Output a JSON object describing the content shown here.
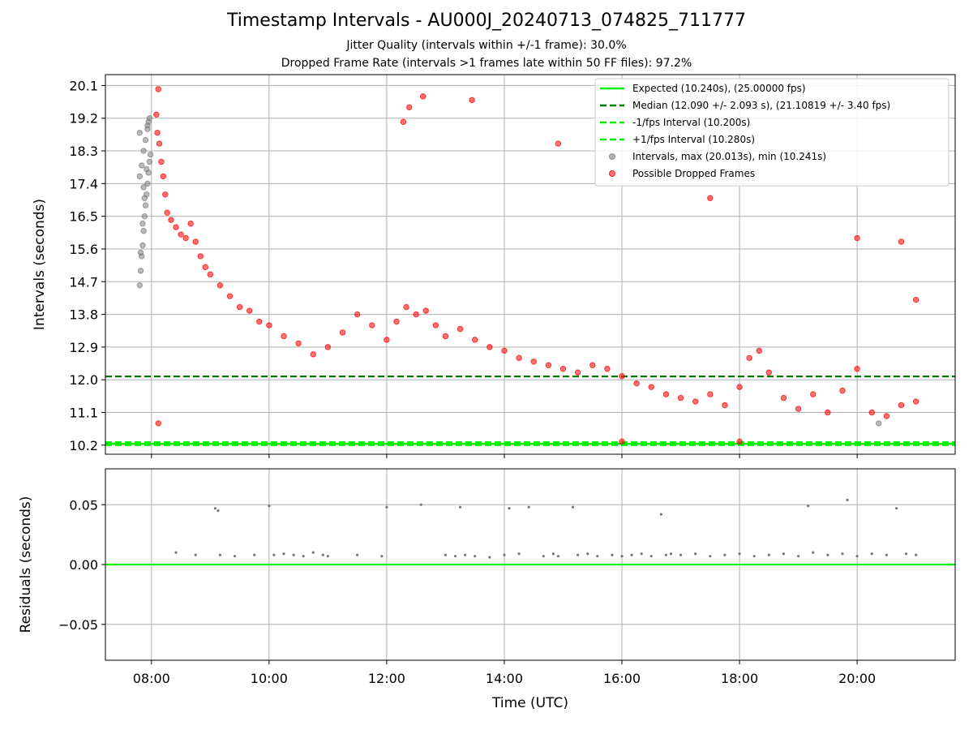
{
  "title": "Timestamp Intervals - AU000J_20240713_074825_711777",
  "subtitle_jitter": "Jitter Quality (intervals within +/-1 frame): 30.0%",
  "subtitle_dropped": "Dropped Frame Rate (intervals >1 frames late within 50 FF files): 97.2%",
  "colors": {
    "expected": "#00ee00",
    "median": "#007f00",
    "interval_band": "#00ee00",
    "intervals": "#808080",
    "dropped": "#ff0000",
    "residuals": "#777777",
    "grid": "#b0b0b0"
  },
  "chart_data": [
    {
      "type": "scatter",
      "panel": "top",
      "xlabel": "",
      "ylabel": "Intervals (seconds)",
      "ylim": [
        9.95,
        20.4
      ],
      "yticks": [
        "10.2",
        "11.1",
        "12.0",
        "12.9",
        "13.8",
        "14.7",
        "15.6",
        "16.5",
        "17.4",
        "18.3",
        "19.2",
        "20.1"
      ],
      "ytick_values": [
        10.2,
        11.1,
        12.0,
        12.9,
        13.8,
        14.7,
        15.6,
        16.5,
        17.4,
        18.3,
        19.2,
        20.1
      ],
      "grid": true,
      "legend_position": "top-right",
      "lines": [
        {
          "name": "Expected (10.240s), (25.00000 fps)",
          "y": 10.24,
          "style": "solid",
          "color": "#00ee00"
        },
        {
          "name": "Median (12.090 +/- 2.093 s), (21.10819 +/- 3.40 fps)",
          "y": 12.09,
          "style": "dashed",
          "color": "#007f00"
        },
        {
          "name": "-1/fps Interval (10.200s)",
          "y": 10.2,
          "style": "dashed",
          "color": "#00ee00"
        },
        {
          "name": "+1/fps Interval (10.280s)",
          "y": 10.28,
          "style": "dashed",
          "color": "#00ee00"
        }
      ],
      "series": [
        {
          "name": "Intervals, max (20.013s), min (10.241s)",
          "color": "#808080",
          "x": [
            "07:48",
            "07:49",
            "07:50",
            "07:51",
            "07:52",
            "07:53",
            "07:54",
            "07:55",
            "07:56",
            "07:57",
            "07:58",
            "07:59",
            "07:48",
            "07:50",
            "07:52",
            "07:54",
            "07:56",
            "07:58",
            "07:49",
            "07:51",
            "07:53",
            "07:55",
            "07:57",
            "07:48",
            "07:52",
            "07:56",
            "20:22"
          ],
          "y": [
            14.6,
            15.0,
            15.4,
            15.7,
            16.1,
            16.5,
            16.8,
            17.1,
            17.4,
            17.7,
            18.0,
            18.2,
            17.6,
            17.9,
            18.3,
            18.6,
            18.9,
            19.2,
            15.5,
            16.3,
            17.0,
            17.8,
            19.1,
            18.8,
            17.3,
            19.0,
            10.8
          ]
        },
        {
          "name": "Possible Dropped Frames",
          "color": "#ff0000",
          "x": [
            "08:05",
            "08:06",
            "08:08",
            "08:10",
            "08:12",
            "08:14",
            "08:16",
            "08:20",
            "08:25",
            "08:30",
            "08:35",
            "08:40",
            "08:45",
            "08:50",
            "08:55",
            "09:00",
            "09:10",
            "09:20",
            "09:30",
            "09:40",
            "09:50",
            "10:00",
            "10:15",
            "10:30",
            "10:45",
            "11:00",
            "11:15",
            "11:30",
            "11:45",
            "12:00",
            "12:10",
            "12:20",
            "12:30",
            "12:40",
            "12:50",
            "13:00",
            "13:15",
            "13:30",
            "13:45",
            "14:00",
            "14:15",
            "14:30",
            "14:45",
            "15:00",
            "15:15",
            "15:30",
            "15:45",
            "16:00",
            "16:15",
            "16:30",
            "16:45",
            "17:00",
            "17:15",
            "17:30",
            "17:45",
            "18:00",
            "18:10",
            "18:20",
            "18:30",
            "18:45",
            "19:00",
            "19:15",
            "19:30",
            "19:45",
            "20:00",
            "20:15",
            "20:30",
            "20:45",
            "21:00",
            "08:07",
            "12:17",
            "12:37",
            "12:23",
            "13:27",
            "14:55",
            "17:30",
            "20:00",
            "20:45",
            "21:00",
            "08:07",
            "16:00",
            "18:00"
          ],
          "y": [
            19.3,
            18.8,
            18.5,
            18.0,
            17.6,
            17.1,
            16.6,
            16.4,
            16.2,
            16.0,
            15.9,
            16.3,
            15.8,
            15.4,
            15.1,
            14.9,
            14.6,
            14.3,
            14.0,
            13.9,
            13.6,
            13.5,
            13.2,
            13.0,
            12.7,
            12.9,
            13.3,
            13.8,
            13.5,
            13.1,
            13.6,
            14.0,
            13.8,
            13.9,
            13.5,
            13.2,
            13.4,
            13.1,
            12.9,
            12.8,
            12.6,
            12.5,
            12.4,
            12.3,
            12.2,
            12.4,
            12.3,
            12.1,
            11.9,
            11.8,
            11.6,
            11.5,
            11.4,
            11.6,
            11.3,
            11.8,
            12.6,
            12.8,
            12.2,
            11.5,
            11.2,
            11.6,
            11.1,
            11.7,
            12.3,
            11.1,
            11.0,
            11.3,
            11.4,
            20.0,
            19.1,
            19.8,
            19.5,
            19.7,
            18.5,
            17.0,
            15.9,
            15.8,
            14.2,
            10.8,
            10.3,
            10.3
          ]
        }
      ]
    },
    {
      "type": "scatter",
      "panel": "bottom",
      "xlabel": "Time (UTC)",
      "ylabel": "Residuals (seconds)",
      "ylim": [
        -0.08,
        0.08
      ],
      "yticks": [
        "−0.05",
        "0.00",
        "0.05"
      ],
      "ytick_values": [
        -0.05,
        0.0,
        0.05
      ],
      "xticks": [
        "08:00",
        "10:00",
        "12:00",
        "14:00",
        "16:00",
        "18:00",
        "20:00"
      ],
      "xlim": [
        "07:13",
        "21:40"
      ],
      "grid": true,
      "baseline": {
        "y": 0.0,
        "color": "#00ee00"
      },
      "series": [
        {
          "name": "",
          "color": "#777777",
          "x": [
            "08:25",
            "08:45",
            "09:05",
            "09:08",
            "09:10",
            "09:25",
            "09:45",
            "10:00",
            "10:05",
            "10:15",
            "10:25",
            "10:35",
            "10:45",
            "10:55",
            "11:00",
            "11:30",
            "11:55",
            "12:00",
            "12:35",
            "13:00",
            "13:10",
            "13:15",
            "13:20",
            "13:30",
            "13:45",
            "14:00",
            "14:05",
            "14:15",
            "14:25",
            "14:40",
            "14:50",
            "14:55",
            "15:10",
            "15:15",
            "15:25",
            "15:35",
            "15:50",
            "16:00",
            "16:10",
            "16:20",
            "16:30",
            "16:40",
            "16:45",
            "16:50",
            "17:00",
            "17:15",
            "17:30",
            "17:45",
            "18:00",
            "18:15",
            "18:30",
            "18:45",
            "19:00",
            "19:10",
            "19:15",
            "19:30",
            "19:45",
            "19:50",
            "20:00",
            "20:15",
            "20:30",
            "20:40",
            "20:50",
            "21:00"
          ],
          "y": [
            0.01,
            0.008,
            0.047,
            0.045,
            0.008,
            0.007,
            0.008,
            0.049,
            0.008,
            0.009,
            0.008,
            0.007,
            0.01,
            0.008,
            0.007,
            0.008,
            0.007,
            0.048,
            0.05,
            0.008,
            0.007,
            0.048,
            0.008,
            0.007,
            0.006,
            0.008,
            0.047,
            0.009,
            0.048,
            0.007,
            0.009,
            0.007,
            0.048,
            0.008,
            0.009,
            0.007,
            0.008,
            0.007,
            0.008,
            0.009,
            0.007,
            0.042,
            0.008,
            0.009,
            0.008,
            0.009,
            0.007,
            0.008,
            0.009,
            0.007,
            0.008,
            0.009,
            0.007,
            0.049,
            0.01,
            0.008,
            0.009,
            0.054,
            0.007,
            0.009,
            0.008,
            0.047,
            0.009,
            0.008
          ]
        }
      ]
    }
  ]
}
